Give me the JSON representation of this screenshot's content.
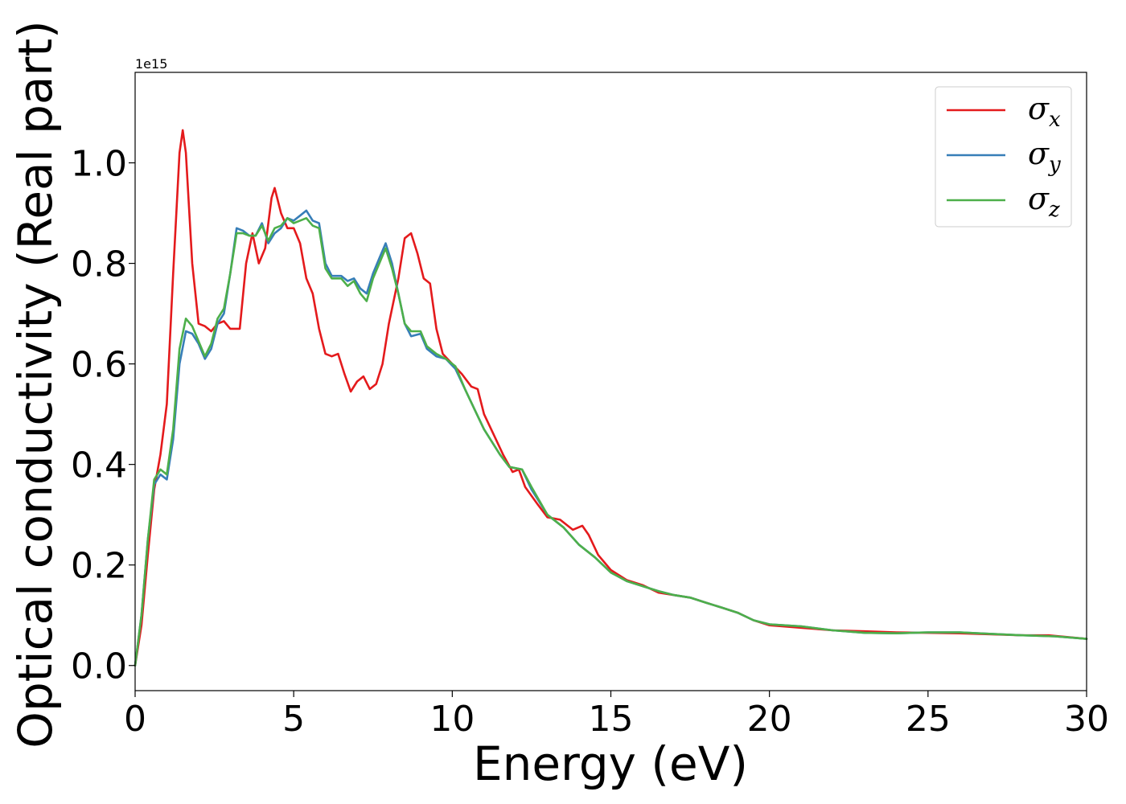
{
  "chart_data": {
    "type": "line",
    "xlabel": "Energy (eV)",
    "ylabel": "Optical conductivity (Real part)",
    "y_offset_label": "1e15",
    "xlim": [
      0,
      30
    ],
    "ylim": [
      -0.05,
      1.18
    ],
    "x_ticks": [
      0,
      5,
      10,
      15,
      20,
      25,
      30
    ],
    "x_tick_labels": [
      "0",
      "5",
      "10",
      "15",
      "20",
      "25",
      "30"
    ],
    "y_ticks": [
      0.0,
      0.2,
      0.4,
      0.6,
      0.8,
      1.0
    ],
    "y_tick_labels": [
      "0.0",
      "0.2",
      "0.4",
      "0.6",
      "0.8",
      "1.0"
    ],
    "grid": false,
    "legend_position": "top-right",
    "series": [
      {
        "name": "σ",
        "subscript": "x",
        "color": "#e41a1c",
        "points": [
          [
            0,
            0
          ],
          [
            0.2,
            0.08
          ],
          [
            0.4,
            0.22
          ],
          [
            0.6,
            0.35
          ],
          [
            0.8,
            0.42
          ],
          [
            1.0,
            0.52
          ],
          [
            1.2,
            0.78
          ],
          [
            1.4,
            1.02
          ],
          [
            1.5,
            1.065
          ],
          [
            1.6,
            1.02
          ],
          [
            1.8,
            0.8
          ],
          [
            2.0,
            0.68
          ],
          [
            2.2,
            0.675
          ],
          [
            2.4,
            0.665
          ],
          [
            2.6,
            0.68
          ],
          [
            2.8,
            0.685
          ],
          [
            3.0,
            0.67
          ],
          [
            3.3,
            0.67
          ],
          [
            3.5,
            0.8
          ],
          [
            3.7,
            0.86
          ],
          [
            3.9,
            0.8
          ],
          [
            4.1,
            0.83
          ],
          [
            4.3,
            0.93
          ],
          [
            4.4,
            0.95
          ],
          [
            4.6,
            0.9
          ],
          [
            4.8,
            0.87
          ],
          [
            5.0,
            0.87
          ],
          [
            5.2,
            0.84
          ],
          [
            5.4,
            0.77
          ],
          [
            5.6,
            0.74
          ],
          [
            5.8,
            0.67
          ],
          [
            6.0,
            0.62
          ],
          [
            6.2,
            0.615
          ],
          [
            6.4,
            0.62
          ],
          [
            6.6,
            0.58
          ],
          [
            6.8,
            0.545
          ],
          [
            7.0,
            0.565
          ],
          [
            7.2,
            0.575
          ],
          [
            7.4,
            0.55
          ],
          [
            7.6,
            0.56
          ],
          [
            7.8,
            0.6
          ],
          [
            8.0,
            0.68
          ],
          [
            8.3,
            0.77
          ],
          [
            8.5,
            0.85
          ],
          [
            8.7,
            0.86
          ],
          [
            8.9,
            0.82
          ],
          [
            9.1,
            0.77
          ],
          [
            9.3,
            0.76
          ],
          [
            9.5,
            0.67
          ],
          [
            9.7,
            0.62
          ],
          [
            10.0,
            0.6
          ],
          [
            10.3,
            0.58
          ],
          [
            10.6,
            0.555
          ],
          [
            10.8,
            0.55
          ],
          [
            11.0,
            0.5
          ],
          [
            11.3,
            0.46
          ],
          [
            11.6,
            0.42
          ],
          [
            11.9,
            0.385
          ],
          [
            12.1,
            0.39
          ],
          [
            12.3,
            0.355
          ],
          [
            12.7,
            0.32
          ],
          [
            13.0,
            0.295
          ],
          [
            13.4,
            0.29
          ],
          [
            13.8,
            0.27
          ],
          [
            14.1,
            0.278
          ],
          [
            14.3,
            0.26
          ],
          [
            14.6,
            0.22
          ],
          [
            15.0,
            0.19
          ],
          [
            15.5,
            0.17
          ],
          [
            16.0,
            0.16
          ],
          [
            16.5,
            0.145
          ],
          [
            17.0,
            0.14
          ],
          [
            17.5,
            0.135
          ],
          [
            18.0,
            0.125
          ],
          [
            18.5,
            0.115
          ],
          [
            19.0,
            0.105
          ],
          [
            19.5,
            0.09
          ],
          [
            20.0,
            0.08
          ],
          [
            21.0,
            0.075
          ],
          [
            22.0,
            0.07
          ],
          [
            23.0,
            0.068
          ],
          [
            24.0,
            0.066
          ],
          [
            25.0,
            0.065
          ],
          [
            26.0,
            0.064
          ],
          [
            27.0,
            0.062
          ],
          [
            28.0,
            0.06
          ],
          [
            28.8,
            0.06
          ],
          [
            30.0,
            0.053
          ]
        ]
      },
      {
        "name": "σ",
        "subscript": "y",
        "color": "#377eb8",
        "points": [
          [
            0,
            0
          ],
          [
            0.2,
            0.1
          ],
          [
            0.4,
            0.25
          ],
          [
            0.6,
            0.36
          ],
          [
            0.8,
            0.38
          ],
          [
            1.0,
            0.37
          ],
          [
            1.2,
            0.45
          ],
          [
            1.4,
            0.6
          ],
          [
            1.6,
            0.665
          ],
          [
            1.8,
            0.66
          ],
          [
            2.0,
            0.64
          ],
          [
            2.2,
            0.61
          ],
          [
            2.4,
            0.63
          ],
          [
            2.6,
            0.68
          ],
          [
            2.8,
            0.7
          ],
          [
            3.0,
            0.78
          ],
          [
            3.2,
            0.87
          ],
          [
            3.4,
            0.865
          ],
          [
            3.6,
            0.855
          ],
          [
            3.8,
            0.855
          ],
          [
            4.0,
            0.88
          ],
          [
            4.2,
            0.84
          ],
          [
            4.4,
            0.86
          ],
          [
            4.6,
            0.87
          ],
          [
            4.8,
            0.89
          ],
          [
            5.0,
            0.885
          ],
          [
            5.2,
            0.895
          ],
          [
            5.4,
            0.905
          ],
          [
            5.6,
            0.885
          ],
          [
            5.8,
            0.88
          ],
          [
            6.0,
            0.8
          ],
          [
            6.2,
            0.775
          ],
          [
            6.5,
            0.775
          ],
          [
            6.7,
            0.765
          ],
          [
            6.9,
            0.77
          ],
          [
            7.1,
            0.75
          ],
          [
            7.3,
            0.74
          ],
          [
            7.5,
            0.78
          ],
          [
            7.7,
            0.81
          ],
          [
            7.9,
            0.84
          ],
          [
            8.1,
            0.8
          ],
          [
            8.3,
            0.74
          ],
          [
            8.5,
            0.68
          ],
          [
            8.7,
            0.655
          ],
          [
            9.0,
            0.66
          ],
          [
            9.2,
            0.63
          ],
          [
            9.5,
            0.615
          ],
          [
            9.8,
            0.61
          ],
          [
            10.1,
            0.59
          ],
          [
            10.4,
            0.55
          ],
          [
            10.7,
            0.51
          ],
          [
            11.0,
            0.47
          ],
          [
            11.5,
            0.42
          ],
          [
            11.8,
            0.395
          ],
          [
            12.2,
            0.39
          ],
          [
            12.5,
            0.35
          ],
          [
            13.0,
            0.3
          ],
          [
            13.5,
            0.275
          ],
          [
            14.0,
            0.24
          ],
          [
            14.5,
            0.215
          ],
          [
            15.0,
            0.185
          ],
          [
            15.5,
            0.168
          ],
          [
            16.0,
            0.158
          ],
          [
            16.5,
            0.148
          ],
          [
            17.0,
            0.14
          ],
          [
            17.5,
            0.135
          ],
          [
            18.0,
            0.125
          ],
          [
            18.5,
            0.115
          ],
          [
            19.0,
            0.105
          ],
          [
            19.5,
            0.09
          ],
          [
            20.0,
            0.082
          ],
          [
            21.0,
            0.078
          ],
          [
            22.0,
            0.07
          ],
          [
            23.0,
            0.065
          ],
          [
            24.0,
            0.064
          ],
          [
            25.0,
            0.066
          ],
          [
            26.0,
            0.066
          ],
          [
            27.0,
            0.063
          ],
          [
            28.0,
            0.06
          ],
          [
            29.0,
            0.058
          ],
          [
            30.0,
            0.053
          ]
        ]
      },
      {
        "name": "σ",
        "subscript": "z",
        "color": "#4daf4a",
        "points": [
          [
            0,
            0
          ],
          [
            0.2,
            0.1
          ],
          [
            0.4,
            0.25
          ],
          [
            0.6,
            0.37
          ],
          [
            0.8,
            0.39
          ],
          [
            1.0,
            0.38
          ],
          [
            1.2,
            0.47
          ],
          [
            1.4,
            0.63
          ],
          [
            1.6,
            0.69
          ],
          [
            1.8,
            0.675
          ],
          [
            2.0,
            0.645
          ],
          [
            2.2,
            0.615
          ],
          [
            2.4,
            0.64
          ],
          [
            2.6,
            0.69
          ],
          [
            2.8,
            0.71
          ],
          [
            3.0,
            0.78
          ],
          [
            3.2,
            0.86
          ],
          [
            3.4,
            0.86
          ],
          [
            3.6,
            0.855
          ],
          [
            3.8,
            0.855
          ],
          [
            4.0,
            0.875
          ],
          [
            4.2,
            0.845
          ],
          [
            4.4,
            0.87
          ],
          [
            4.6,
            0.875
          ],
          [
            4.8,
            0.89
          ],
          [
            5.0,
            0.88
          ],
          [
            5.2,
            0.885
          ],
          [
            5.4,
            0.89
          ],
          [
            5.6,
            0.875
          ],
          [
            5.8,
            0.87
          ],
          [
            6.0,
            0.79
          ],
          [
            6.2,
            0.77
          ],
          [
            6.5,
            0.77
          ],
          [
            6.7,
            0.755
          ],
          [
            6.9,
            0.765
          ],
          [
            7.1,
            0.74
          ],
          [
            7.3,
            0.725
          ],
          [
            7.5,
            0.77
          ],
          [
            7.7,
            0.8
          ],
          [
            7.9,
            0.83
          ],
          [
            8.1,
            0.79
          ],
          [
            8.3,
            0.74
          ],
          [
            8.5,
            0.68
          ],
          [
            8.7,
            0.665
          ],
          [
            9.0,
            0.665
          ],
          [
            9.2,
            0.635
          ],
          [
            9.5,
            0.62
          ],
          [
            9.8,
            0.61
          ],
          [
            10.1,
            0.595
          ],
          [
            10.4,
            0.55
          ],
          [
            10.7,
            0.51
          ],
          [
            11.0,
            0.47
          ],
          [
            11.5,
            0.42
          ],
          [
            11.8,
            0.395
          ],
          [
            12.2,
            0.39
          ],
          [
            12.5,
            0.355
          ],
          [
            13.0,
            0.3
          ],
          [
            13.5,
            0.275
          ],
          [
            14.0,
            0.24
          ],
          [
            14.5,
            0.215
          ],
          [
            15.0,
            0.185
          ],
          [
            15.5,
            0.168
          ],
          [
            16.0,
            0.158
          ],
          [
            16.5,
            0.148
          ],
          [
            17.0,
            0.14
          ],
          [
            17.5,
            0.135
          ],
          [
            18.0,
            0.125
          ],
          [
            18.5,
            0.115
          ],
          [
            19.0,
            0.105
          ],
          [
            19.5,
            0.09
          ],
          [
            20.0,
            0.082
          ],
          [
            21.0,
            0.078
          ],
          [
            22.0,
            0.07
          ],
          [
            23.0,
            0.065
          ],
          [
            24.0,
            0.064
          ],
          [
            25.0,
            0.066
          ],
          [
            26.0,
            0.066
          ],
          [
            27.0,
            0.063
          ],
          [
            28.0,
            0.06
          ],
          [
            29.0,
            0.058
          ],
          [
            30.0,
            0.053
          ]
        ]
      }
    ]
  }
}
